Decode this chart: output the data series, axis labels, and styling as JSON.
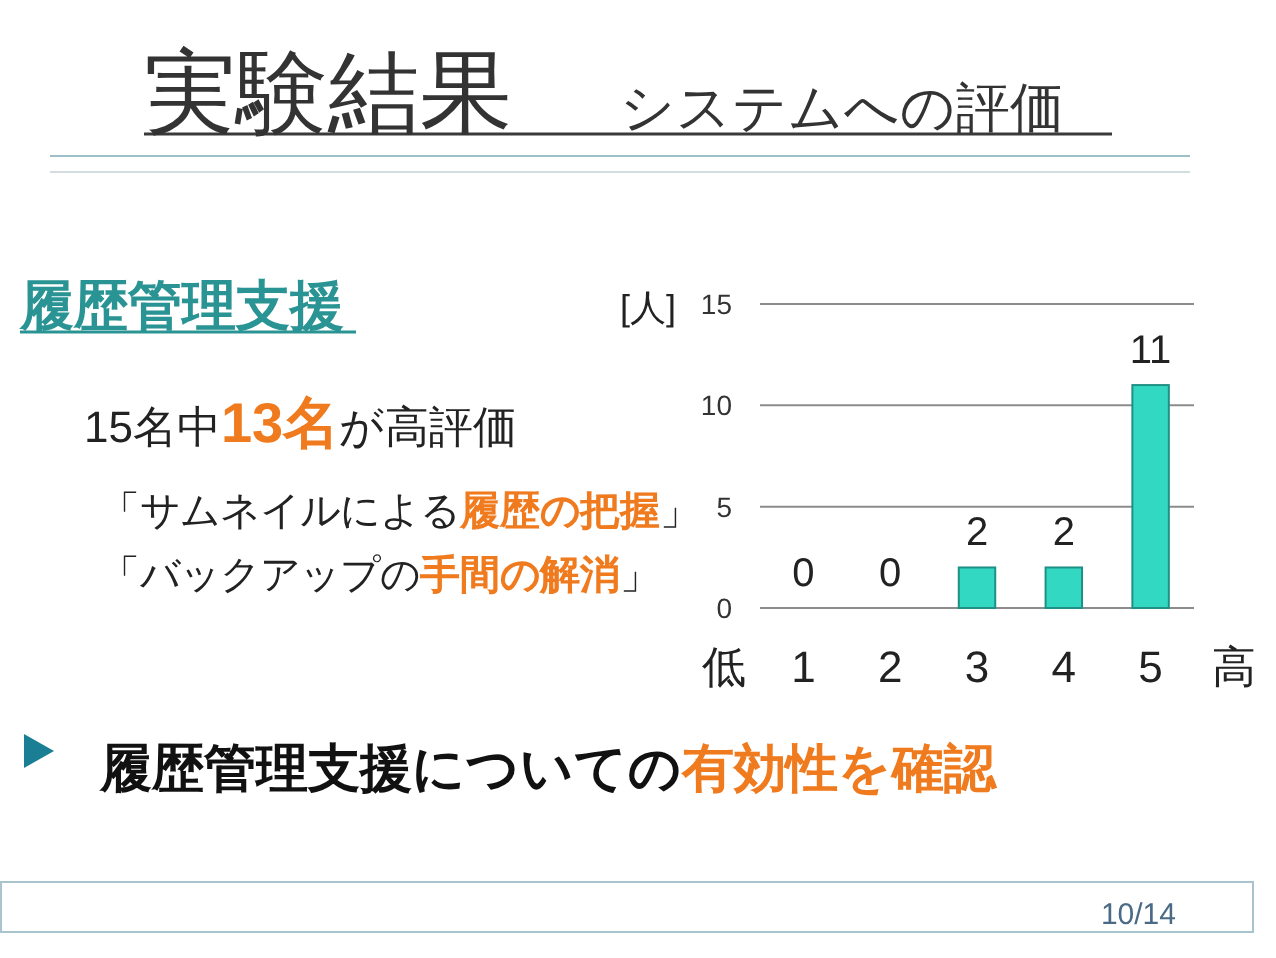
{
  "chart_data": {
    "type": "bar",
    "title": "実験結果",
    "subtitle": "システムへの評価",
    "ylabel": "[人]",
    "categories": [
      "1",
      "2",
      "3",
      "4",
      "5"
    ],
    "values": [
      0,
      0,
      2,
      2,
      11
    ],
    "color": "#33d8c3",
    "ylim": [
      0,
      15
    ],
    "yticks": [
      0,
      5,
      10,
      15
    ],
    "grid": "y",
    "data_labels": true,
    "annotations": [
      "低",
      "高",
      "履歴管理支援",
      "15名中**13名**が高評価",
      "「サムネイルによる**履歴の把握**」",
      "「バックアップの**手間の解消**」",
      "履歴管理支援についての**有効性を確認**",
      "10/14"
    ]
  }
}
